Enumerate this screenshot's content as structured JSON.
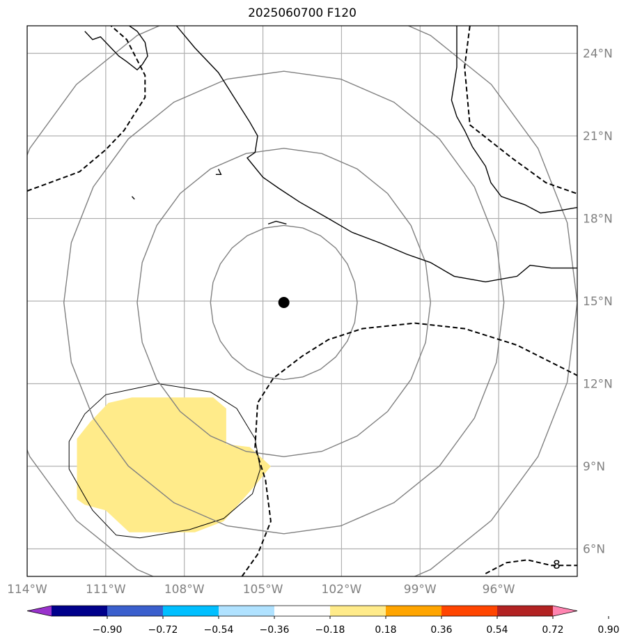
{
  "title": "2025060700 F120",
  "map": {
    "lon_range": [
      -114.0,
      -93.0
    ],
    "lat_range": [
      5.0,
      25.0
    ],
    "grid": true,
    "lon_ticks": [
      {
        "value": -114,
        "label": "114°W"
      },
      {
        "value": -111,
        "label": "111°W"
      },
      {
        "value": -108,
        "label": "108°W"
      },
      {
        "value": -105,
        "label": "105°W"
      },
      {
        "value": -102,
        "label": "102°W"
      },
      {
        "value": -99,
        "label": "99°W"
      },
      {
        "value": -96,
        "label": "96°W"
      }
    ],
    "lat_ticks": [
      {
        "value": 24,
        "label": "24°N"
      },
      {
        "value": 21,
        "label": "21°N"
      },
      {
        "value": 18,
        "label": "18°N"
      },
      {
        "value": 15,
        "label": "15°N"
      },
      {
        "value": 12,
        "label": "12°N"
      },
      {
        "value": 9,
        "label": "9°N"
      },
      {
        "value": 6,
        "label": "6°N"
      }
    ],
    "center": {
      "lon": -104.2,
      "lat": 14.95
    },
    "range_rings_deg": [
      2.8,
      5.6,
      8.4,
      11.2
    ],
    "contour_label": "8",
    "colors": {
      "ring": "#808080",
      "coast": "#000000",
      "grid": "#b0b0b0",
      "shade": "#ffeb8a",
      "center": "#000000"
    }
  },
  "colorbar": {
    "levels": [
      "−0.90",
      "−0.72",
      "−0.54",
      "−0.36",
      "−0.18",
      "0.18",
      "0.36",
      "0.54",
      "0.72",
      "0.90"
    ],
    "colors": [
      "#9932cc",
      "#00008b",
      "#3a5fcd",
      "#00bfff",
      "#b0e2ff",
      "#ffffff",
      "#ffeb8a",
      "#ffa500",
      "#ff4500",
      "#b22222",
      "#ff85b1"
    ]
  }
}
